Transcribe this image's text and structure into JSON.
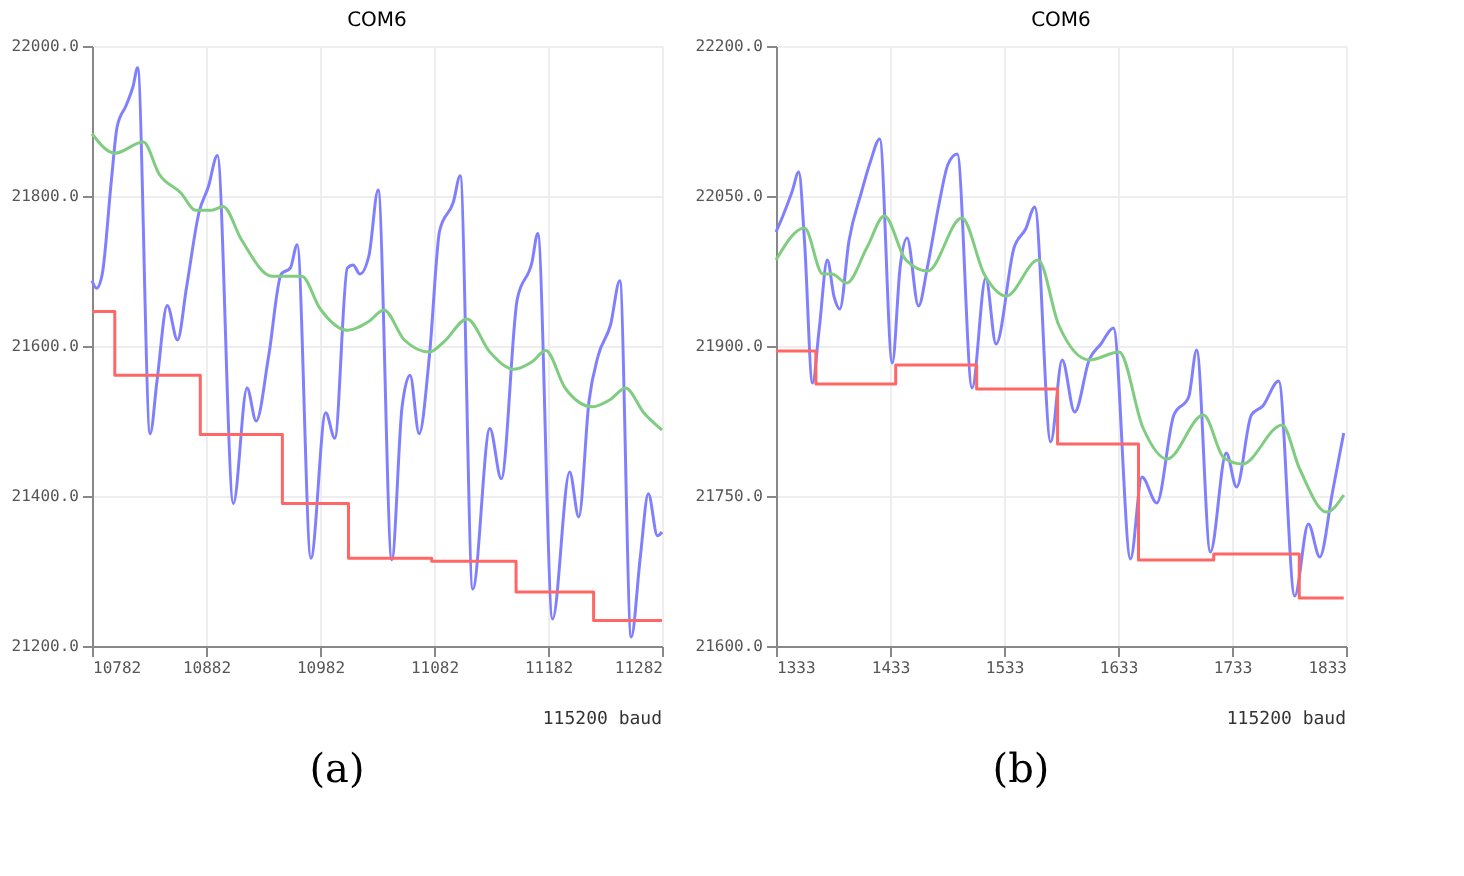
{
  "chart_data": [
    {
      "type": "line",
      "title": "COM6",
      "annotations": [
        "115200 baud",
        "(a)"
      ],
      "grid": true,
      "xlim": [
        10782,
        11282
      ],
      "xticks": [
        10782,
        10882,
        10982,
        11082,
        11182,
        11282
      ],
      "ylim": [
        21200,
        22000
      ],
      "yticks": [
        {
          "value": 21200,
          "label": "21200.0"
        },
        {
          "value": 21400,
          "label": "21400.0"
        },
        {
          "value": 21600,
          "label": "21600.0"
        },
        {
          "value": 21800,
          "label": "21800.0"
        },
        {
          "value": 22000,
          "label": "22000.0"
        }
      ],
      "series": [
        {
          "type": "line",
          "color": "#8080ff",
          "x": [
            10782,
            10786,
            10791,
            10799,
            10804,
            10812,
            10818,
            10822,
            10833,
            10839,
            10848,
            10857,
            10865,
            10876,
            10884,
            10892,
            10906,
            10918,
            10926,
            10937,
            10948,
            10956,
            10962,
            10974,
            10987,
            10995,
            11006,
            11011,
            11017,
            11025,
            11033,
            11045,
            11054,
            11061,
            11069,
            11078,
            11087,
            11099,
            11105,
            11116,
            11131,
            11141,
            11155,
            11168,
            11173,
            11186,
            11201,
            11209,
            11218,
            11226,
            11237,
            11245,
            11255,
            11263,
            11270,
            11278,
            11282
          ],
          "values": [
            21687,
            21677,
            21696,
            21821,
            21892,
            21921,
            21946,
            21971,
            21483,
            21553,
            21654,
            21608,
            21679,
            21779,
            21812,
            21854,
            21390,
            21544,
            21500,
            21587,
            21696,
            21704,
            21735,
            21317,
            21511,
            21477,
            21704,
            21708,
            21696,
            21721,
            21808,
            21315,
            21519,
            21561,
            21483,
            21587,
            21754,
            21792,
            21827,
            21276,
            21490,
            21423,
            21662,
            21712,
            21750,
            21236,
            21432,
            21372,
            21527,
            21587,
            21629,
            21687,
            21212,
            21319,
            21403,
            21347,
            21352
          ]
        },
        {
          "type": "step",
          "color": "#ff6666",
          "x": [
            10782,
            10802,
            10877,
            10949,
            11007,
            11080,
            11154,
            11222,
            11282
          ],
          "values": [
            21646,
            21561,
            21482,
            21390,
            21317,
            21313,
            21272,
            21234,
            21234
          ]
        },
        {
          "type": "line",
          "color": "#80cc80",
          "x": [
            10782,
            10802,
            10827,
            10841,
            10860,
            10873,
            10887,
            10897,
            10913,
            10940,
            10966,
            10982,
            11006,
            11025,
            11038,
            11056,
            11078,
            11091,
            11111,
            11131,
            11152,
            11168,
            11180,
            11197,
            11221,
            11237,
            11250,
            11266,
            11282
          ],
          "values": [
            21883,
            21857,
            21872,
            21829,
            21804,
            21781,
            21781,
            21786,
            21742,
            21693,
            21693,
            21650,
            21621,
            21633,
            21648,
            21608,
            21592,
            21606,
            21636,
            21592,
            21569,
            21579,
            21594,
            21544,
            21519,
            21529,
            21544,
            21511,
            21488
          ]
        }
      ]
    },
    {
      "type": "line",
      "title": "COM6",
      "annotations": [
        "115200 baud",
        "(b)"
      ],
      "grid": true,
      "xlim": [
        1333,
        1833
      ],
      "xticks": [
        1333,
        1433,
        1533,
        1633,
        1733,
        1833
      ],
      "ylim": [
        21600,
        22200
      ],
      "yticks": [
        {
          "value": 21600,
          "label": "21600.0"
        },
        {
          "value": 21750,
          "label": "21750.0"
        },
        {
          "value": 21900,
          "label": "21900.0"
        },
        {
          "value": 22050,
          "label": "22050.0"
        },
        {
          "value": 22200,
          "label": "22200.0"
        }
      ],
      "series": [
        {
          "type": "line",
          "color": "#8080ff",
          "x": [
            1333,
            1339,
            1347,
            1353,
            1358,
            1365,
            1371,
            1378,
            1384,
            1389,
            1397,
            1408,
            1416,
            1424,
            1435,
            1442,
            1448,
            1458,
            1466,
            1476,
            1484,
            1492,
            1505,
            1517,
            1526,
            1542,
            1552,
            1560,
            1574,
            1584,
            1595,
            1608,
            1618,
            1629,
            1644,
            1654,
            1667,
            1682,
            1695,
            1702,
            1714,
            1728,
            1737,
            1750,
            1760,
            1774,
            1788,
            1800,
            1810,
            1821,
            1831
          ],
          "values": [
            22014,
            22030,
            22054,
            22074,
            22005,
            21863,
            21918,
            21986,
            21949,
            21937,
            22005,
            22054,
            22085,
            22107,
            21883,
            21980,
            22008,
            21940,
            21980,
            22042,
            22082,
            22092,
            21858,
            21968,
            21902,
            21999,
            22017,
            22039,
            21804,
            21886,
            21834,
            21887,
            21902,
            21918,
            21687,
            21769,
            21743,
            21831,
            21849,
            21896,
            21694,
            21793,
            21759,
            21831,
            21840,
            21865,
            21650,
            21722,
            21689,
            21753,
            21813
          ]
        },
        {
          "type": "step",
          "color": "#ff6666",
          "x": [
            1333,
            1368,
            1438,
            1509,
            1580,
            1651,
            1717,
            1792,
            1831
          ],
          "values": [
            21895,
            21862,
            21881,
            21857,
            21802,
            21686,
            21692,
            21648,
            21648
          ]
        },
        {
          "type": "line",
          "color": "#80cc80",
          "x": [
            1333,
            1358,
            1374,
            1382,
            1395,
            1413,
            1428,
            1447,
            1466,
            1496,
            1516,
            1535,
            1563,
            1581,
            1608,
            1634,
            1655,
            1676,
            1708,
            1726,
            1742,
            1777,
            1792,
            1816,
            1831
          ],
          "values": [
            21986,
            22018,
            21972,
            21972,
            21963,
            21999,
            22030,
            21986,
            21975,
            22028,
            21971,
            21950,
            21986,
            21921,
            21886,
            21894,
            21818,
            21787,
            21831,
            21788,
            21782,
            21821,
            21778,
            21734,
            21751
          ]
        }
      ]
    }
  ]
}
